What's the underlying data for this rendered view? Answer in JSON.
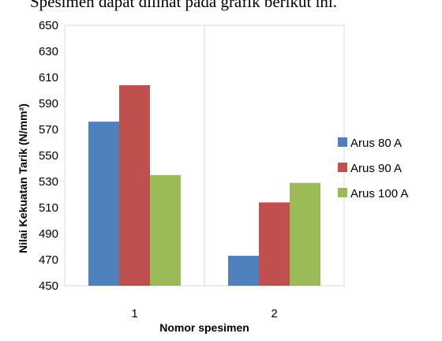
{
  "caption_partial": "Spesimen dapat dilihat pada grafik berikut ini.",
  "chart_data": {
    "type": "bar",
    "categories": [
      "1",
      "2"
    ],
    "series": [
      {
        "name": "Arus 80 A",
        "values": [
          576,
          473
        ],
        "color": "#4f81bd"
      },
      {
        "name": "Arus 90 A",
        "values": [
          604,
          514
        ],
        "color": "#c0504d"
      },
      {
        "name": "Arus 100 A",
        "values": [
          535,
          529
        ],
        "color": "#9bbb59"
      }
    ],
    "xlabel": "Nomor spesimen",
    "ylabel": "Nilai Kekuatan Tarik (N/mm²)",
    "ylim": [
      450,
      650
    ],
    "yticks": [
      "450",
      "470",
      "490",
      "510",
      "530",
      "550",
      "570",
      "590",
      "610",
      "630",
      "650"
    ],
    "grid": "vertical-only",
    "legend": "right"
  }
}
